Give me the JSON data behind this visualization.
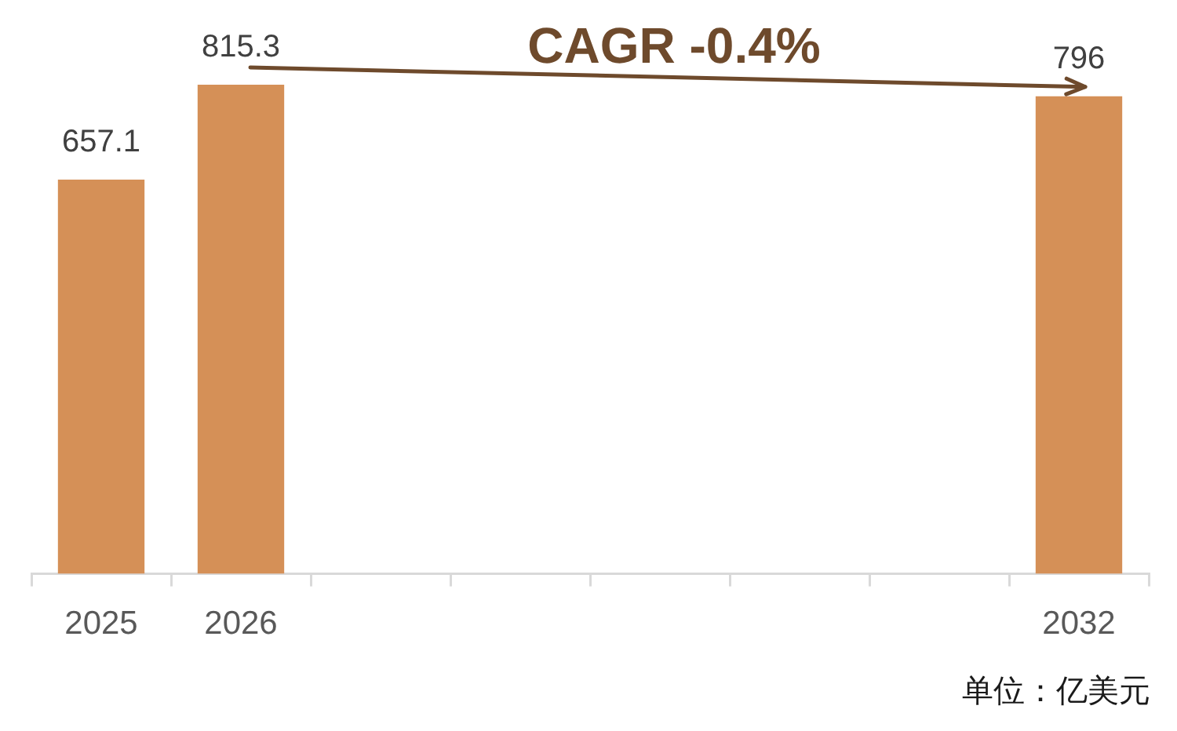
{
  "chart_data": {
    "type": "bar",
    "categories": [
      "2025",
      "2026",
      null,
      null,
      null,
      null,
      null,
      "2032"
    ],
    "values": [
      657.1,
      815.3,
      null,
      null,
      null,
      null,
      null,
      796
    ],
    "color": "#d59057",
    "data_labels": true,
    "annotations": [
      "CAGR -0.4%",
      "单位：亿美元"
    ]
  }
}
